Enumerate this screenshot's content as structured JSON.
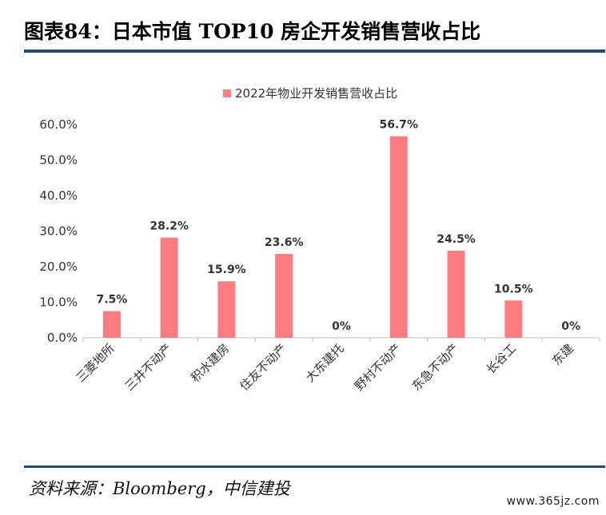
{
  "header": {
    "title": "图表84：日本市值 TOP10 房企开发销售营收占比"
  },
  "footer": {
    "source": "资料来源：Bloomberg，中信建投",
    "watermark": "www.365jz.com"
  },
  "colors": {
    "bar": "#ff7c80",
    "rule": "#1f4e79",
    "axis": "#bfbfbf"
  },
  "chart_data": {
    "type": "bar",
    "categories": [
      "三菱地所",
      "三井不动产",
      "积水建房",
      "住友不动产",
      "大东建托",
      "野村不动产",
      "东急不动产",
      "长谷工",
      "东建"
    ],
    "series": [
      {
        "name": "2022年物业开发销售营收占比",
        "values": [
          7.5,
          28.2,
          15.9,
          23.6,
          0,
          56.7,
          24.5,
          10.5,
          0
        ]
      }
    ],
    "data_labels": [
      "7.5%",
      "28.2%",
      "15.9%",
      "23.6%",
      "0%",
      "56.7%",
      "24.5%",
      "10.5%",
      "0%"
    ],
    "ytick_labels": [
      "0.0%",
      "10.0%",
      "20.0%",
      "30.0%",
      "40.0%",
      "50.0%",
      "60.0%"
    ],
    "ylim": [
      0,
      60
    ],
    "legend_position": "top",
    "grid": false
  }
}
